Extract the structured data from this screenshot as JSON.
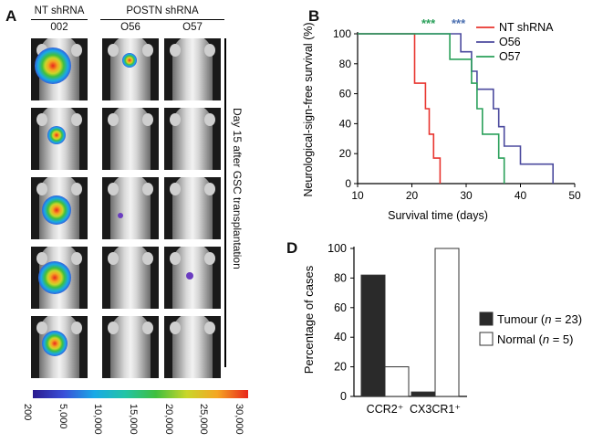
{
  "panels": {
    "a": "A",
    "b": "B",
    "d": "D"
  },
  "panel_a": {
    "header_left": "NT shRNA",
    "header_right": "POSTN shRNA",
    "columns": [
      "002",
      "O56",
      "O57"
    ],
    "side_label": "Day 15 after GSC transplantation",
    "colorbar_ticks": [
      "200",
      "5,000",
      "10,000",
      "15,000",
      "20,000",
      "25,000",
      "30,000"
    ],
    "colorbar_colors": [
      "#2b1b8f",
      "#3a4fd8",
      "#19a9e6",
      "#22c4a6",
      "#3fbf3f",
      "#c9d62a",
      "#f5a623",
      "#e8261c"
    ]
  },
  "chart_data": [
    {
      "type": "line",
      "panel": "B",
      "ylabel": "Neurological-sign-free survival (%)",
      "xlabel": "Survival time (days)",
      "xlim": [
        10,
        50
      ],
      "ylim": [
        0,
        100
      ],
      "xticks": [
        "10",
        "20",
        "30",
        "40",
        "50"
      ],
      "yticks": [
        "0",
        "20",
        "40",
        "60",
        "80",
        "100"
      ],
      "legend_position": "top-right",
      "annotations": [
        "***",
        "***"
      ],
      "series": [
        {
          "name": "NT shRNA",
          "color": "#e8342e",
          "steps": [
            [
              10,
              100
            ],
            [
              20.5,
              100
            ],
            [
              20.5,
              67
            ],
            [
              22.5,
              67
            ],
            [
              22.5,
              50
            ],
            [
              23.2,
              50
            ],
            [
              23.2,
              33
            ],
            [
              24,
              33
            ],
            [
              24,
              17
            ],
            [
              25.2,
              17
            ],
            [
              25.2,
              0
            ]
          ]
        },
        {
          "name": "O56",
          "color": "#4b4a9e",
          "steps": [
            [
              10,
              100
            ],
            [
              29,
              100
            ],
            [
              29,
              88
            ],
            [
              31,
              88
            ],
            [
              31,
              75
            ],
            [
              32,
              75
            ],
            [
              32,
              63
            ],
            [
              35,
              63
            ],
            [
              35,
              50
            ],
            [
              36,
              50
            ],
            [
              36,
              38
            ],
            [
              37,
              38
            ],
            [
              37,
              25
            ],
            [
              40,
              25
            ],
            [
              40,
              13
            ],
            [
              46,
              13
            ],
            [
              46,
              0
            ]
          ]
        },
        {
          "name": "O57",
          "color": "#2aa05a",
          "steps": [
            [
              10,
              100
            ],
            [
              27,
              100
            ],
            [
              27,
              83
            ],
            [
              31,
              83
            ],
            [
              31,
              67
            ],
            [
              32,
              67
            ],
            [
              32,
              50
            ],
            [
              33,
              50
            ],
            [
              33,
              33
            ],
            [
              36,
              33
            ],
            [
              36,
              17
            ],
            [
              37,
              17
            ],
            [
              37,
              0
            ]
          ]
        }
      ]
    },
    {
      "type": "bar",
      "panel": "D",
      "ylabel": "Percentage of cases",
      "categories": [
        "CCR2⁺",
        "CX3CR1⁺"
      ],
      "ylim": [
        0,
        100
      ],
      "yticks": [
        "0",
        "20",
        "40",
        "60",
        "80",
        "100"
      ],
      "legend_position": "right",
      "series": [
        {
          "name": "Tumour (n = 23)",
          "legend_main": "Tumour (",
          "legend_n": "n",
          "legend_rest": " = 23)",
          "color": "#2a2a2a",
          "values": [
            82,
            3
          ]
        },
        {
          "name": "Normal (n = 5)",
          "legend_main": "Normal (",
          "legend_n": "n",
          "legend_rest": " = 5)",
          "color": "#ffffff",
          "values": [
            20,
            100
          ]
        }
      ]
    }
  ]
}
